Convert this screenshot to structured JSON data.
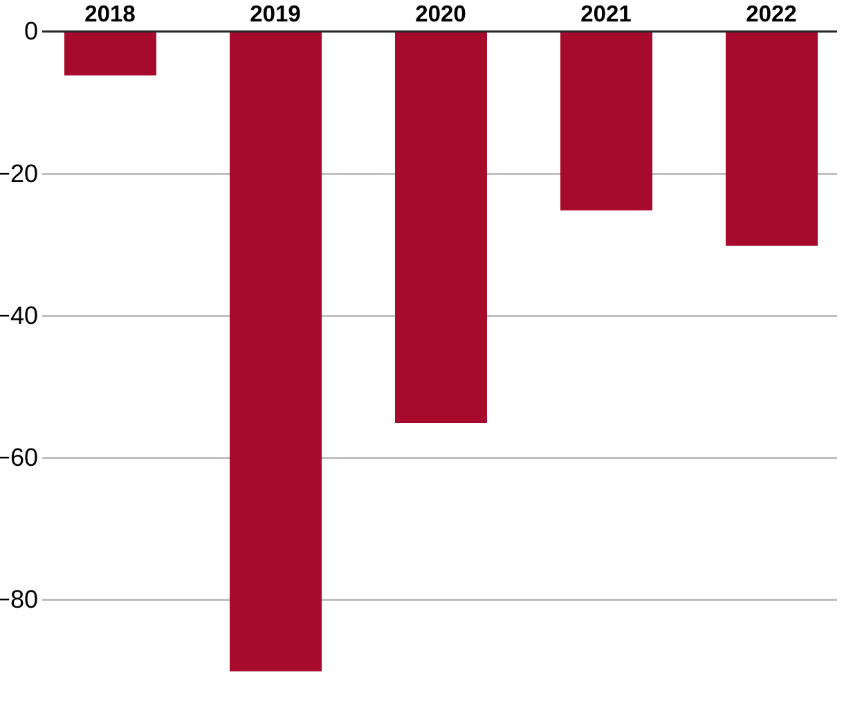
{
  "chart_data": {
    "type": "bar",
    "title": "",
    "xlabel": "",
    "ylabel": "",
    "categories": [
      "2018",
      "2019",
      "2020",
      "2021",
      "2022"
    ],
    "values": [
      -6,
      -90,
      -55,
      -25,
      -30
    ],
    "series": [
      {
        "name": "value",
        "values": [
          -6,
          -90,
          -55,
          -25,
          -30
        ]
      }
    ],
    "ylim": [
      -95,
      0
    ],
    "yticks": [
      0,
      -20,
      -40,
      -60,
      -80
    ],
    "ytick_labels": [
      "0",
      "−20",
      "−40",
      "−60",
      "−80"
    ],
    "x_axis_position": "top",
    "grid": "horizontal-gridlines",
    "legend_position": "none",
    "colors": {
      "bar": "#a60b2e",
      "axis_line": "#262624",
      "gridline": "#bfbfbf",
      "tick_label": "#000000",
      "category_label": "#000000",
      "background": "#ffffff"
    }
  }
}
